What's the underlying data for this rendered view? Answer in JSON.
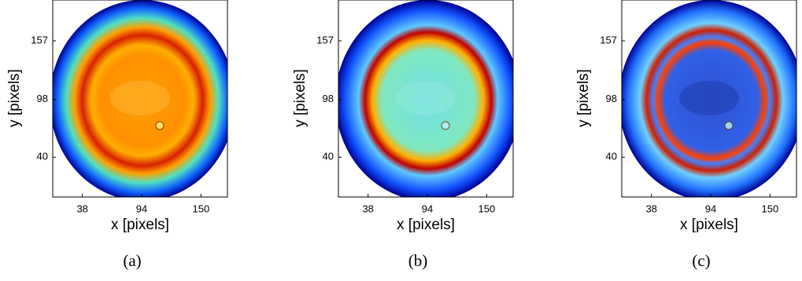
{
  "chart_data": [
    {
      "type": "image",
      "caption": "(a)",
      "xlabel": "x [pixels]",
      "ylabel": "y [pixels]",
      "xlim": [
        10,
        175
      ],
      "ylim": [
        0,
        198
      ],
      "xticks": [
        38,
        94,
        150
      ],
      "yticks": [
        40,
        98,
        157
      ]
    },
    {
      "type": "image",
      "caption": "(b)",
      "xlabel": "x [pixels]",
      "ylabel": "y [pixels]",
      "xlim": [
        10,
        175
      ],
      "ylim": [
        0,
        198
      ],
      "xticks": [
        38,
        94,
        150
      ],
      "yticks": [
        40,
        98,
        157
      ]
    },
    {
      "type": "image",
      "caption": "(c)",
      "xlabel": "x [pixels]",
      "ylabel": "y [pixels]",
      "xlim": [
        10,
        175
      ],
      "ylim": [
        0,
        198
      ],
      "xticks": [
        38,
        94,
        150
      ],
      "yticks": [
        40,
        98,
        157
      ]
    }
  ]
}
